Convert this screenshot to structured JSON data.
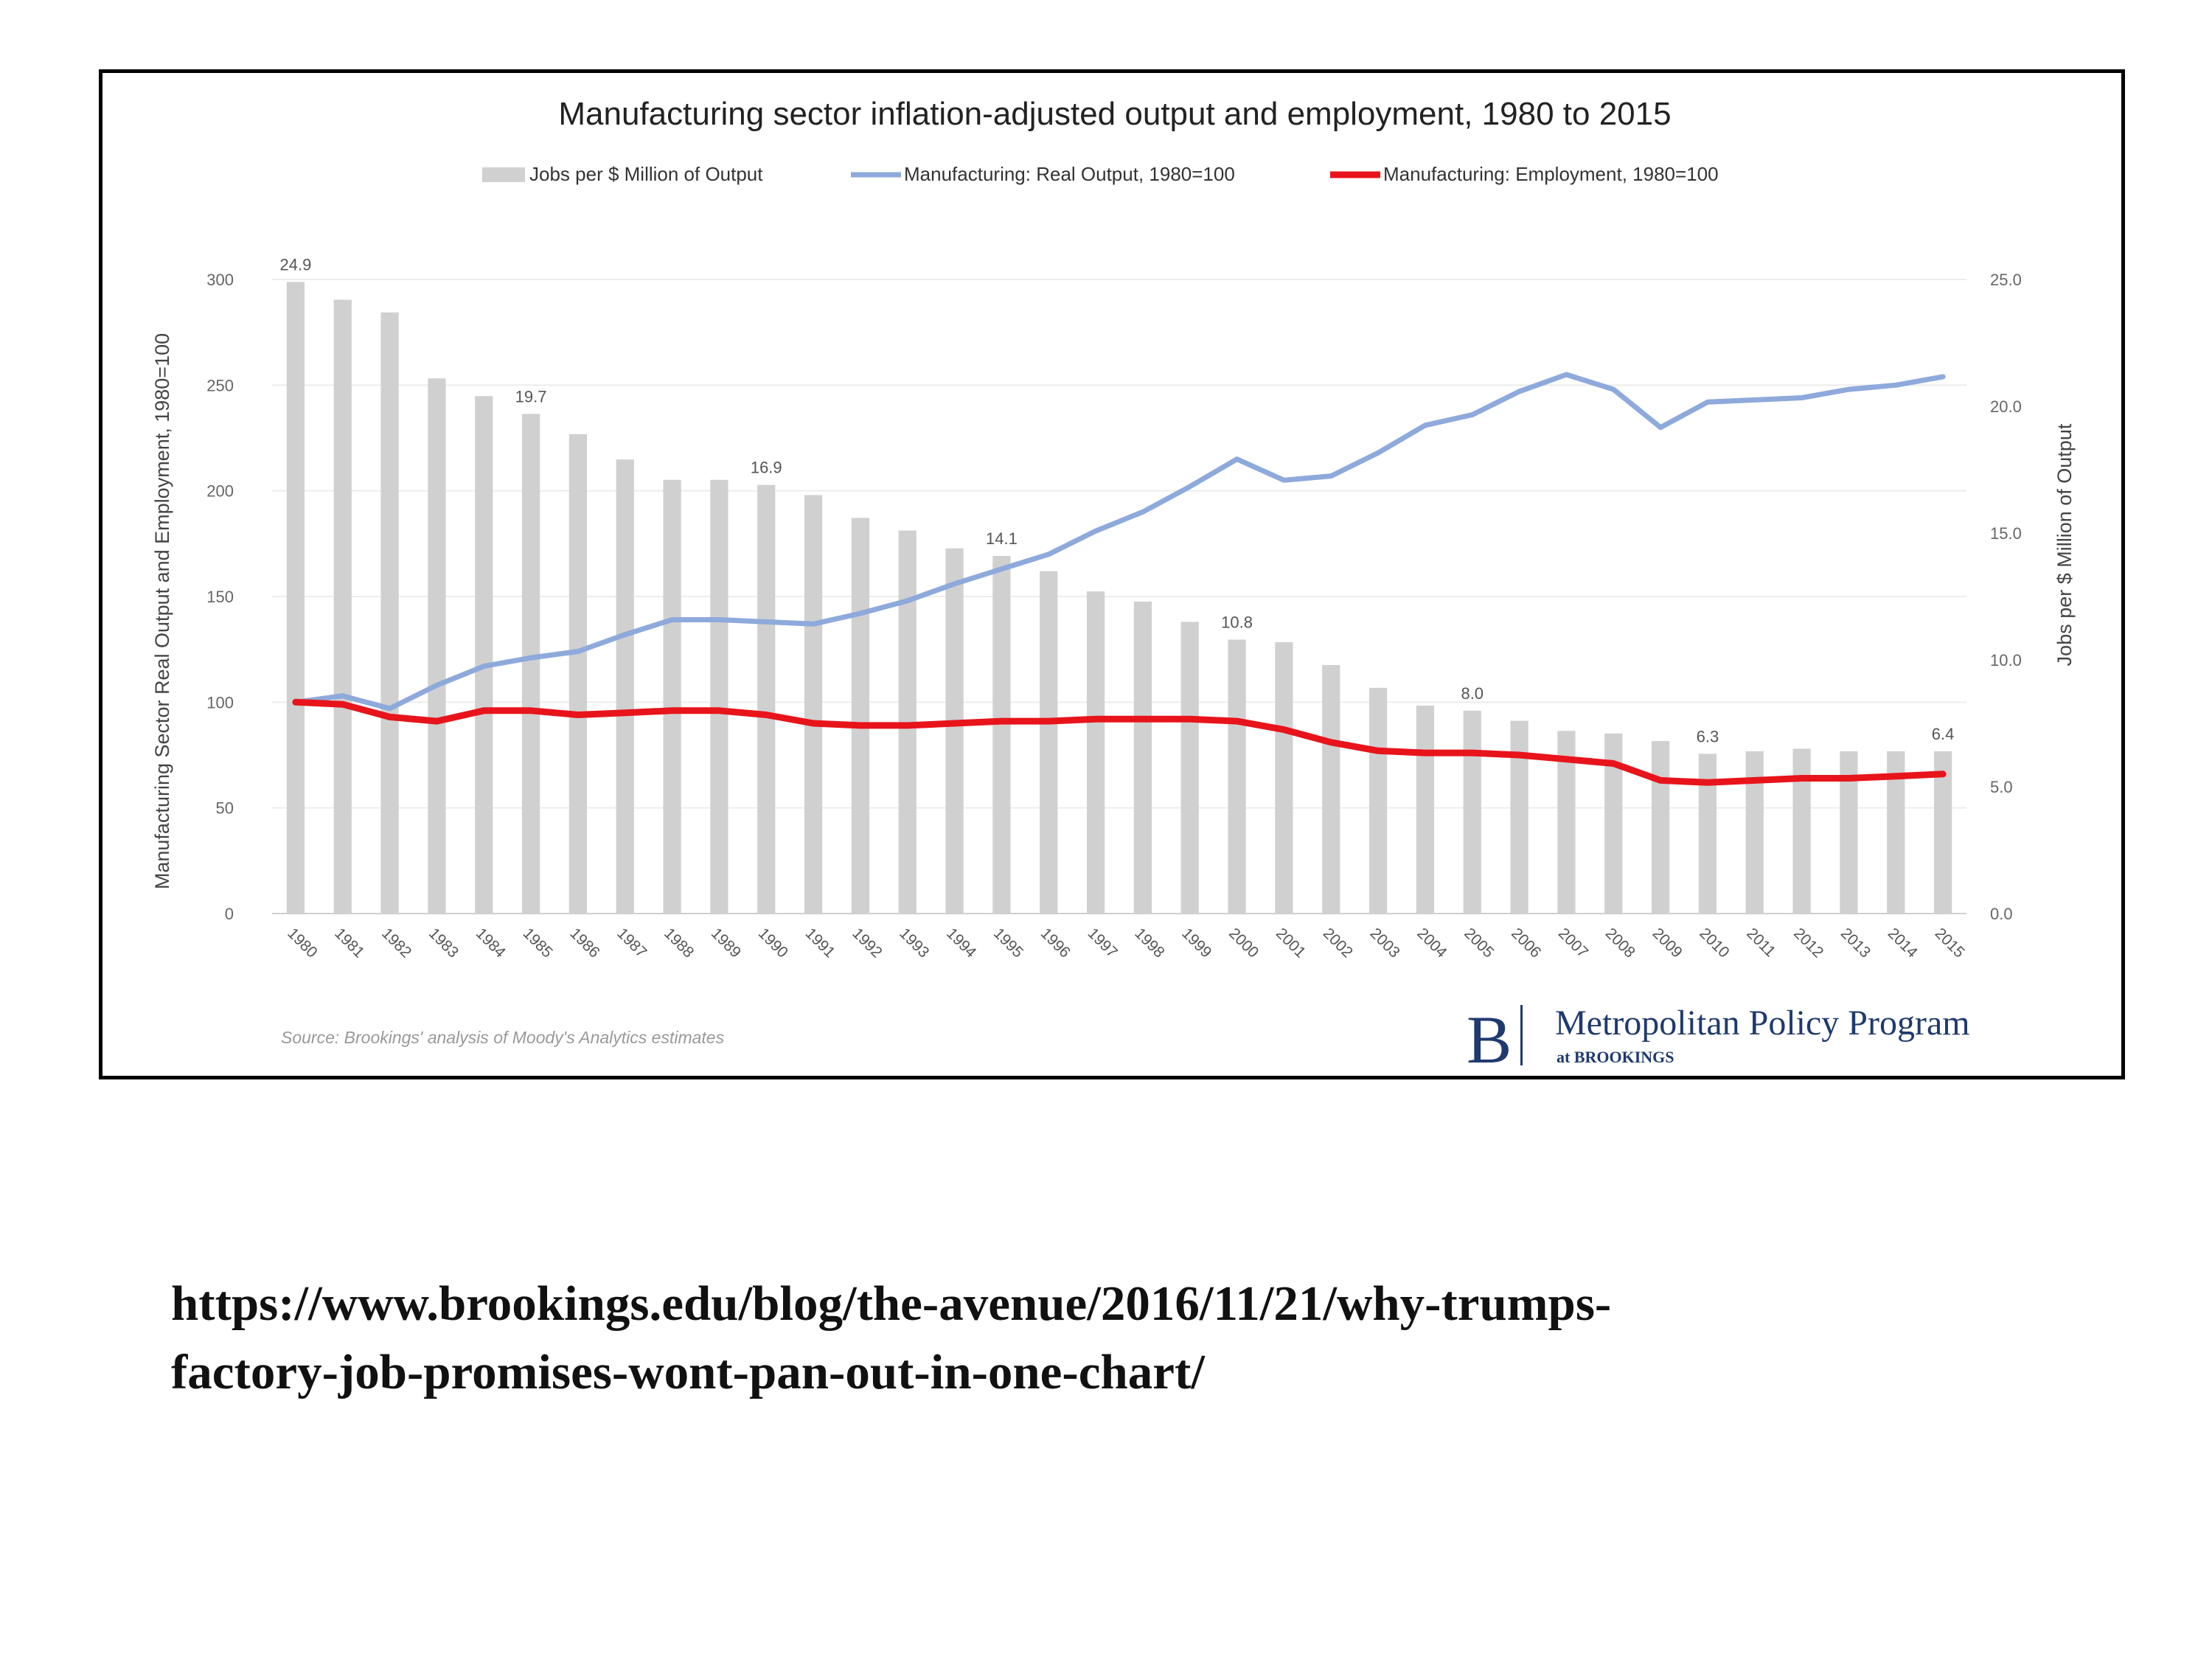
{
  "chart_data": {
    "type": "bar",
    "title": "Manufacturing sector inflation-adjusted output and employment, 1980 to 2015",
    "ylabel": "Manufacturing Sector Real Output and Employment, 1980=100",
    "y2label": "Jobs per $ Million of Output",
    "ylim": [
      0,
      300
    ],
    "y2lim": [
      0,
      25
    ],
    "yticks": [
      "0",
      "50",
      "100",
      "150",
      "200",
      "250",
      "300"
    ],
    "y2ticks": [
      "0.0",
      "5.0",
      "10.0",
      "15.0",
      "20.0",
      "25.0"
    ],
    "grid": true,
    "legend_position": "top",
    "categories": [
      "1980",
      "1981",
      "1982",
      "1983",
      "1984",
      "1985",
      "1986",
      "1987",
      "1988",
      "1989",
      "1990",
      "1991",
      "1992",
      "1993",
      "1994",
      "1995",
      "1996",
      "1997",
      "1998",
      "1999",
      "2000",
      "2001",
      "2002",
      "2003",
      "2004",
      "2005",
      "2006",
      "2007",
      "2008",
      "2009",
      "2010",
      "2011",
      "2012",
      "2013",
      "2014",
      "2015"
    ],
    "series": [
      {
        "name": "Jobs per $ Million of Output",
        "kind": "bar",
        "axis": "right",
        "color": "#d0d0d0",
        "values": [
          24.9,
          24.2,
          23.7,
          21.1,
          20.4,
          19.7,
          18.9,
          17.9,
          17.1,
          17.1,
          16.9,
          16.5,
          15.6,
          15.1,
          14.4,
          14.1,
          13.5,
          12.7,
          12.3,
          11.5,
          10.8,
          10.7,
          9.8,
          8.9,
          8.2,
          8.0,
          7.6,
          7.2,
          7.1,
          6.8,
          6.3,
          6.4,
          6.5,
          6.4,
          6.4,
          6.4
        ],
        "data_labels": [
          {
            "index": 0,
            "text": "24.9"
          },
          {
            "index": 5,
            "text": "19.7"
          },
          {
            "index": 10,
            "text": "16.9"
          },
          {
            "index": 15,
            "text": "14.1"
          },
          {
            "index": 20,
            "text": "10.8"
          },
          {
            "index": 25,
            "text": "8.0"
          },
          {
            "index": 30,
            "text": "6.3"
          },
          {
            "index": 35,
            "text": "6.4"
          }
        ]
      },
      {
        "name": "Manufacturing: Real Output, 1980=100",
        "kind": "line",
        "axis": "left",
        "color": "#8ea9db",
        "values": [
          100,
          103,
          97,
          108,
          117,
          121,
          124,
          132,
          139,
          139,
          138,
          137,
          142,
          148,
          156,
          163,
          170,
          181,
          190,
          202,
          215,
          205,
          207,
          218,
          231,
          236,
          247,
          255,
          248,
          230,
          242,
          243,
          244,
          248,
          250,
          254
        ]
      },
      {
        "name": "Manufacturing: Employment, 1980=100",
        "kind": "line",
        "axis": "left",
        "color": "#e8141b",
        "values": [
          100,
          99,
          93,
          91,
          96,
          96,
          94,
          95,
          96,
          96,
          94,
          90,
          89,
          89,
          90,
          91,
          91,
          92,
          92,
          92,
          91,
          87,
          81,
          77,
          76,
          76,
          75,
          73,
          71,
          63,
          62,
          63,
          64,
          64,
          65,
          66
        ]
      }
    ],
    "source": "Source: Brookings' analysis of Moody's Analytics estimates"
  },
  "branding": {
    "logo_letter": "B",
    "program_name": "Metropolitan Policy Program",
    "affiliation": "at BROOKINGS",
    "brand_color": "#1f3a6e"
  },
  "url": {
    "line1": "https://www.brookings.edu/blog/the-avenue/2016/11/21/why-trumps-",
    "line2": "factory-job-promises-wont-pan-out-in-one-chart/"
  }
}
